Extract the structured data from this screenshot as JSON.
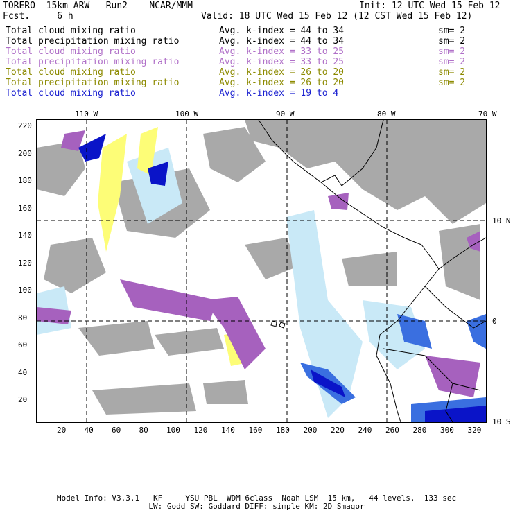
{
  "header": {
    "left_line1": "TORERO  15km ARW   Run2    NCAR/MMM",
    "left_line2": "Fcst.     6 h",
    "init": "Init: 12 UTC Wed 15 Feb 12",
    "valid": "Valid: 18 UTC Wed 15 Feb 12 (12 CST Wed 15 Feb 12)"
  },
  "legend": [
    {
      "field": "Total cloud mixing ratio",
      "range": "Avg. k-index = 44 to 34",
      "sm": "sm= 2",
      "color": "#000000"
    },
    {
      "field": "Total precipitation mixing ratio",
      "range": "Avg. k-index = 44 to 34",
      "sm": "sm= 2",
      "color": "#000000"
    },
    {
      "field": "Total cloud mixing ratio",
      "range": "Avg. k-index = 33 to 25",
      "sm": "sm= 2",
      "color": "#b070c8"
    },
    {
      "field": "Total precipitation mixing ratio",
      "range": "Avg. k-index = 33 to 25",
      "sm": "sm= 2",
      "color": "#b070c8"
    },
    {
      "field": "Total cloud mixing ratio",
      "range": "Avg. k-index = 26 to 20",
      "sm": "sm= 2",
      "color": "#8c8a00"
    },
    {
      "field": "Total precipitation mixing ratio",
      "range": "Avg. k-index = 26 to 20",
      "sm": "sm= 2",
      "color": "#8c8a00"
    },
    {
      "field": "Total cloud mixing ratio",
      "range": "Avg. k-index = 19 to 4",
      "sm": "",
      "color": "#1a20d0"
    }
  ],
  "map": {
    "lon_labels": [
      "110 W",
      "100 W",
      "90 W",
      "80 W",
      "70 W"
    ],
    "lat_labels": [
      "10 N",
      "0",
      "10 S"
    ],
    "y_ticks": [
      "220",
      "200",
      "180",
      "160",
      "140",
      "120",
      "100",
      "80",
      "60",
      "40",
      "20"
    ],
    "x_ticks": [
      "20",
      "40",
      "60",
      "80",
      "100",
      "120",
      "140",
      "160",
      "180",
      "200",
      "220",
      "240",
      "260",
      "280",
      "300",
      "320"
    ],
    "colors": {
      "grey": "#a9a9a9",
      "purple": "#a661be",
      "yellow": "#fdfd77",
      "lightblue": "#c9e9f7",
      "blue": "#3a6fe0",
      "darkblue": "#0a14c8"
    }
  },
  "footer": {
    "line1": "Model Info: V3.3.1   KF     YSU PBL  WDM 6class  Noah LSM  15 km,   44 levels,  133 sec",
    "line2": "LW: Godd SW: Goddard DIFF: simple KM: 2D Smagor"
  }
}
